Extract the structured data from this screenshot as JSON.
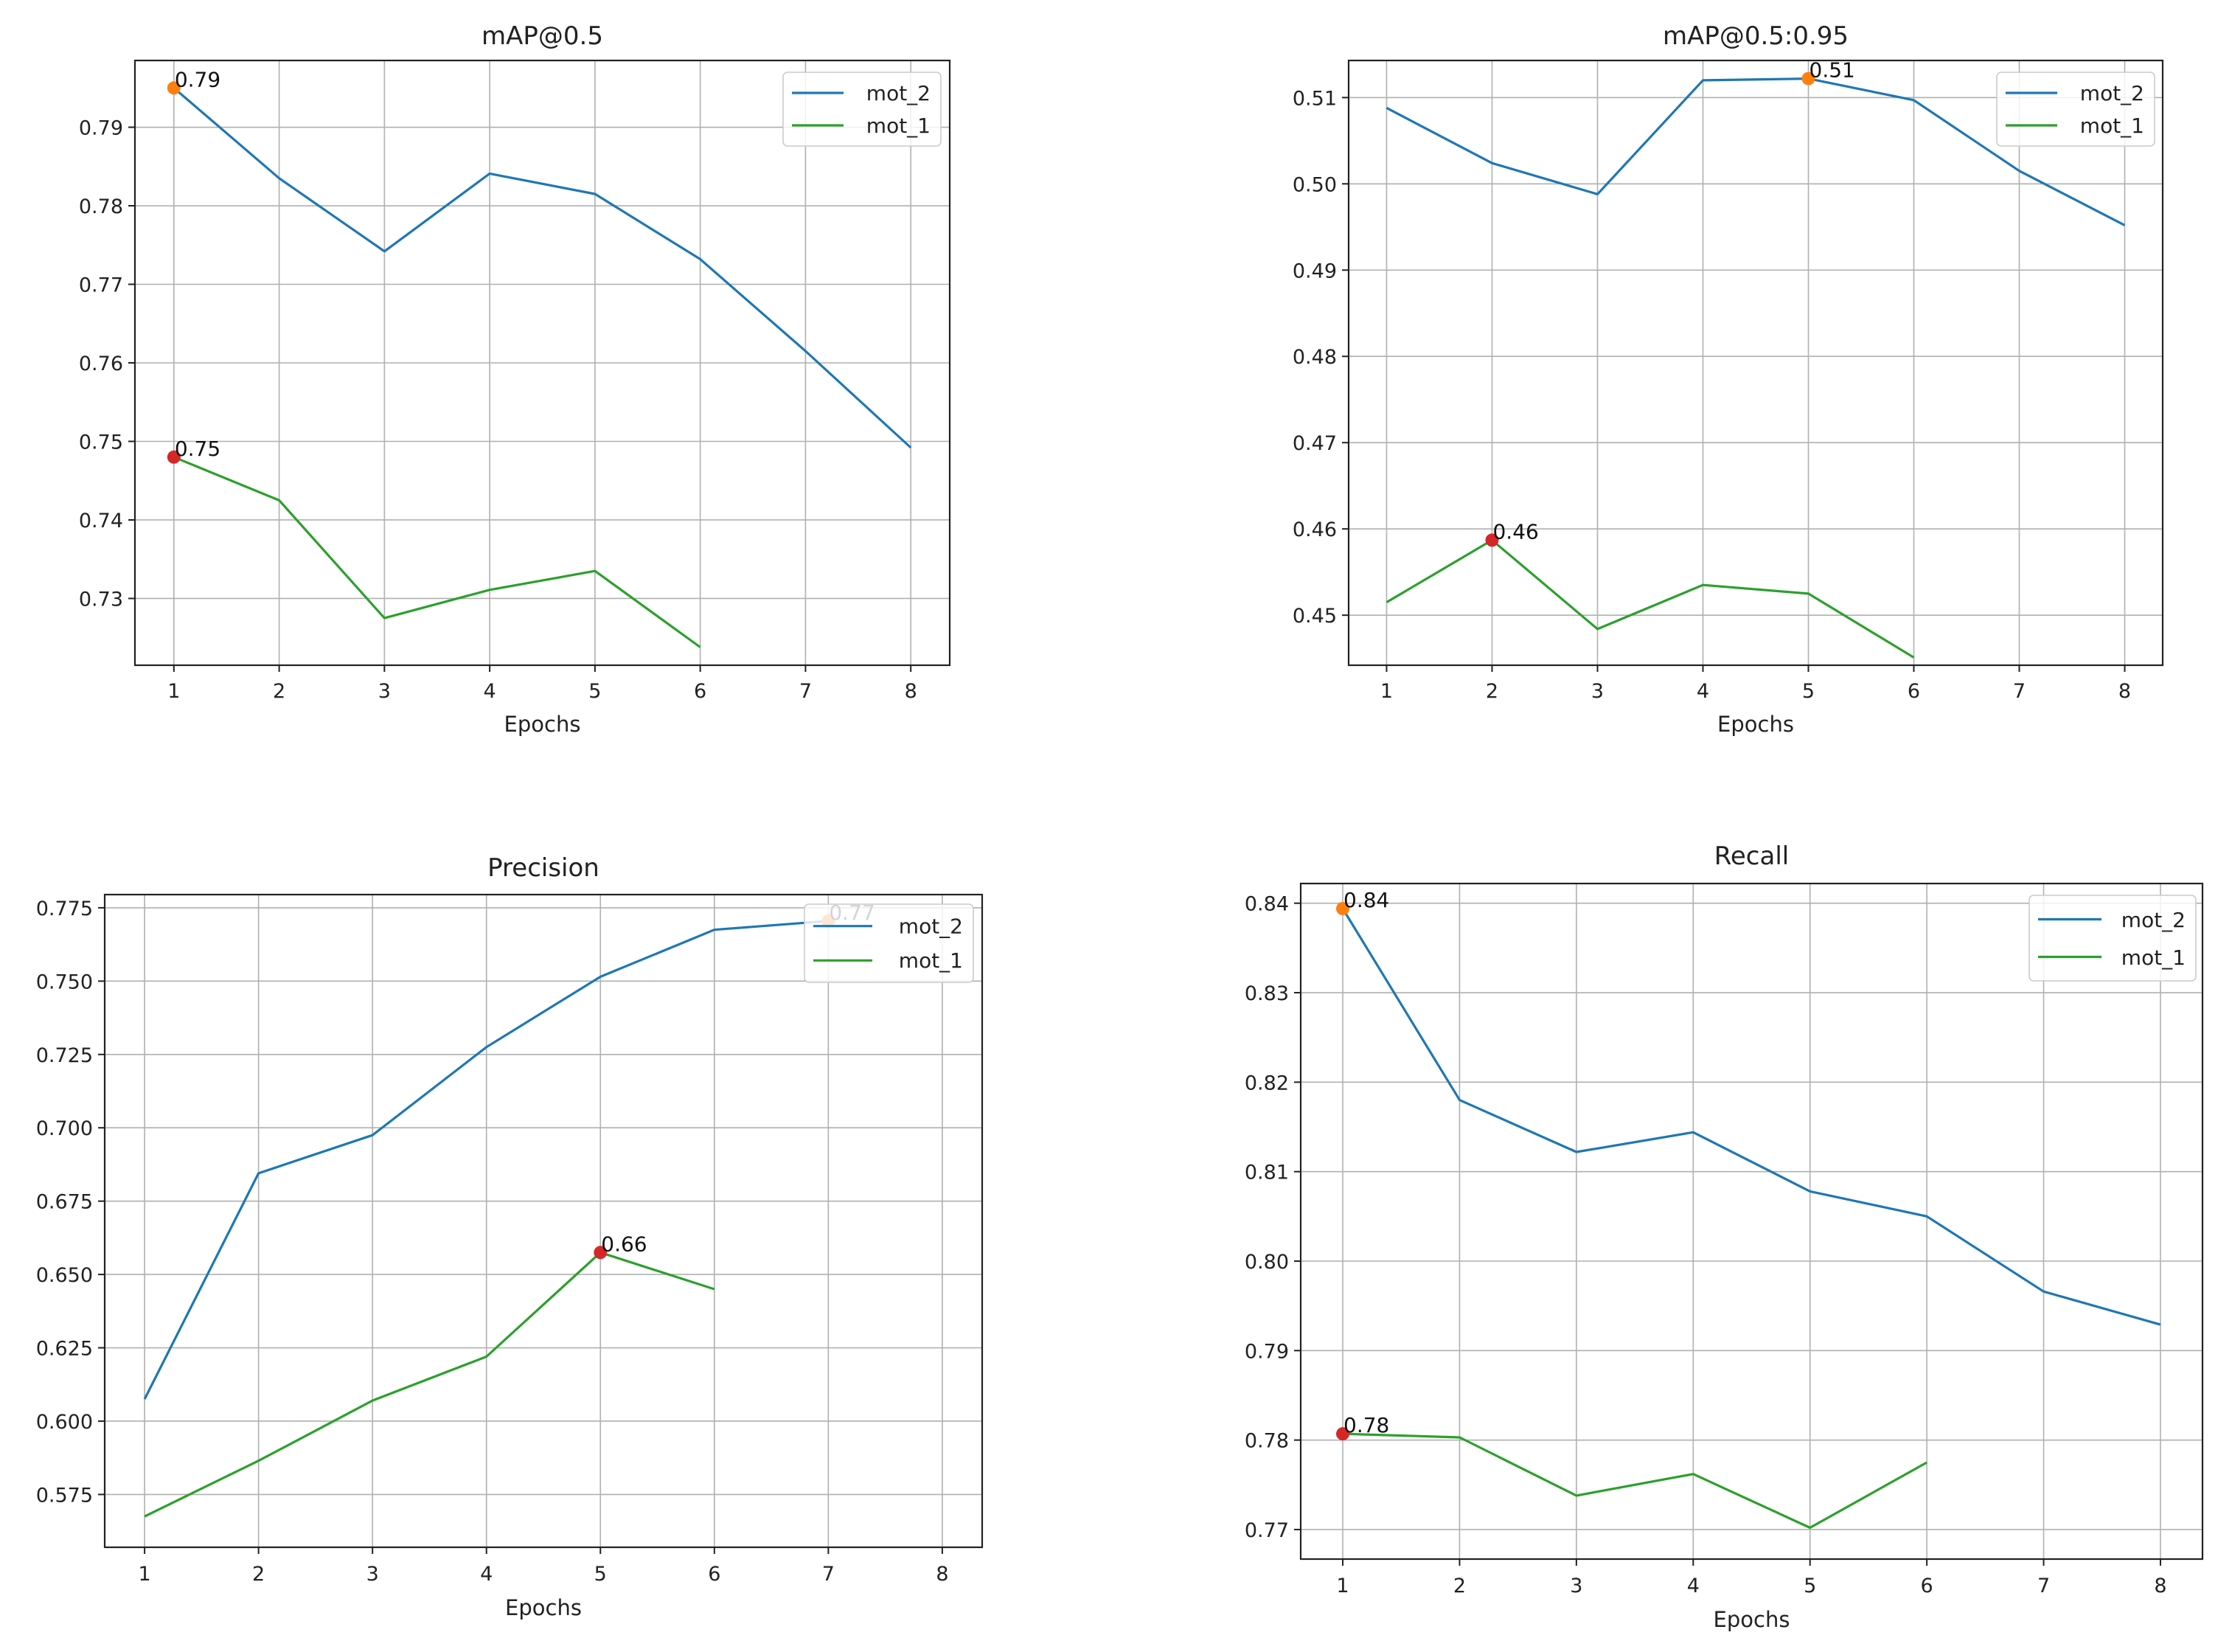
{
  "colors": {
    "mot_2": "#1f77b4",
    "mot_1": "#2ca02c",
    "max_mot_2": "#ff7f0e",
    "max_mot_1": "#d62728"
  },
  "chart_data": [
    {
      "type": "line",
      "title": "mAP@0.5",
      "xlabel": "Epochs",
      "ylabel": "",
      "x_ticks": [
        1,
        2,
        3,
        4,
        5,
        6,
        7,
        8
      ],
      "xlim": [
        0.63,
        8.37
      ],
      "ylim": [
        0.7215,
        0.7985
      ],
      "y_ticks": [
        0.73,
        0.74,
        0.75,
        0.76,
        0.77,
        0.78,
        0.79
      ],
      "y_tick_labels": [
        "0.73",
        "0.74",
        "0.75",
        "0.76",
        "0.77",
        "0.78",
        "0.79"
      ],
      "grid": true,
      "legend_position": "top-right",
      "series": [
        {
          "name": "mot_2",
          "x": [
            1,
            2,
            3,
            4,
            5,
            6,
            7,
            8
          ],
          "y": [
            0.795,
            0.7835,
            0.7742,
            0.7841,
            0.7815,
            0.7732,
            0.7615,
            0.7492
          ]
        },
        {
          "name": "mot_1",
          "x": [
            1,
            2,
            3,
            4,
            5,
            6
          ],
          "y": [
            0.748,
            0.7425,
            0.7275,
            0.7311,
            0.7335,
            0.7238
          ]
        }
      ],
      "annotations": [
        {
          "series": "mot_2",
          "x": 1,
          "y": 0.795,
          "text": "0.79"
        },
        {
          "series": "mot_1",
          "x": 1,
          "y": 0.748,
          "text": "0.75"
        }
      ]
    },
    {
      "type": "line",
      "title": "mAP@0.5:0.95",
      "xlabel": "Epochs",
      "ylabel": "",
      "x_ticks": [
        1,
        2,
        3,
        4,
        5,
        6,
        7,
        8
      ],
      "xlim": [
        0.64,
        8.36
      ],
      "ylim": [
        0.4442,
        0.5143
      ],
      "y_ticks": [
        0.45,
        0.46,
        0.47,
        0.48,
        0.49,
        0.5,
        0.51
      ],
      "y_tick_labels": [
        "0.45",
        "0.46",
        "0.47",
        "0.48",
        "0.49",
        "0.50",
        "0.51"
      ],
      "grid": true,
      "legend_position": "top-right",
      "series": [
        {
          "name": "mot_2",
          "x": [
            1,
            2,
            3,
            4,
            5,
            6,
            7,
            8
          ],
          "y": [
            0.5088,
            0.5024,
            0.4988,
            0.512,
            0.5122,
            0.5097,
            0.5015,
            0.4952
          ]
        },
        {
          "name": "mot_1",
          "x": [
            1,
            2,
            3,
            4,
            5,
            6
          ],
          "y": [
            0.4515,
            0.4587,
            0.4484,
            0.4535,
            0.4525,
            0.4451
          ]
        }
      ],
      "annotations": [
        {
          "series": "mot_2",
          "x": 5,
          "y": 0.5122,
          "text": "0.51"
        },
        {
          "series": "mot_1",
          "x": 2,
          "y": 0.4587,
          "text": "0.46"
        }
      ]
    },
    {
      "type": "line",
      "title": "Precision",
      "xlabel": "Epochs",
      "ylabel": "",
      "x_ticks": [
        1,
        2,
        3,
        4,
        5,
        6,
        7,
        8
      ],
      "xlim": [
        0.65,
        8.35
      ],
      "ylim": [
        0.557,
        0.7795
      ],
      "y_ticks": [
        0.575,
        0.6,
        0.625,
        0.65,
        0.675,
        0.7,
        0.725,
        0.75,
        0.775
      ],
      "y_tick_labels": [
        "0.575",
        "0.600",
        "0.625",
        "0.650",
        "0.675",
        "0.700",
        "0.725",
        "0.750",
        "0.775"
      ],
      "grid": true,
      "legend_position": "top-right",
      "series": [
        {
          "name": "mot_2",
          "x": [
            1,
            2,
            3,
            4,
            5,
            6,
            7
          ],
          "y": [
            0.6075,
            0.6845,
            0.6975,
            0.7275,
            0.7515,
            0.7675,
            0.7705
          ]
        },
        {
          "name": "mot_1",
          "x": [
            1,
            2,
            3,
            4,
            5,
            6
          ],
          "y": [
            0.5675,
            0.5865,
            0.607,
            0.622,
            0.6575,
            0.645
          ]
        }
      ],
      "annotations": [
        {
          "series": "mot_2",
          "x": 7,
          "y": 0.7705,
          "text": "0.77"
        },
        {
          "series": "mot_1",
          "x": 5,
          "y": 0.6575,
          "text": "0.66"
        }
      ]
    },
    {
      "type": "line",
      "title": "Recall",
      "xlabel": "Epochs",
      "ylabel": "",
      "x_ticks": [
        1,
        2,
        3,
        4,
        5,
        6,
        7,
        8
      ],
      "xlim": [
        0.64,
        8.36
      ],
      "ylim": [
        0.7667,
        0.8422
      ],
      "y_ticks": [
        0.77,
        0.78,
        0.79,
        0.8,
        0.81,
        0.82,
        0.83,
        0.84
      ],
      "y_tick_labels": [
        "0.77",
        "0.78",
        "0.79",
        "0.80",
        "0.81",
        "0.82",
        "0.83",
        "0.84"
      ],
      "grid": true,
      "legend_position": "top-right",
      "series": [
        {
          "name": "mot_2",
          "x": [
            1,
            2,
            3,
            4,
            5,
            6,
            7,
            8
          ],
          "y": [
            0.8394,
            0.818,
            0.8122,
            0.8144,
            0.8078,
            0.805,
            0.7966,
            0.7929
          ]
        },
        {
          "name": "mot_1",
          "x": [
            1,
            2,
            3,
            4,
            5,
            6
          ],
          "y": [
            0.7807,
            0.7803,
            0.7738,
            0.7762,
            0.7702,
            0.7775
          ]
        }
      ],
      "annotations": [
        {
          "series": "mot_2",
          "x": 1,
          "y": 0.8394,
          "text": "0.84"
        },
        {
          "series": "mot_1",
          "x": 1,
          "y": 0.7807,
          "text": "0.78"
        }
      ]
    }
  ]
}
